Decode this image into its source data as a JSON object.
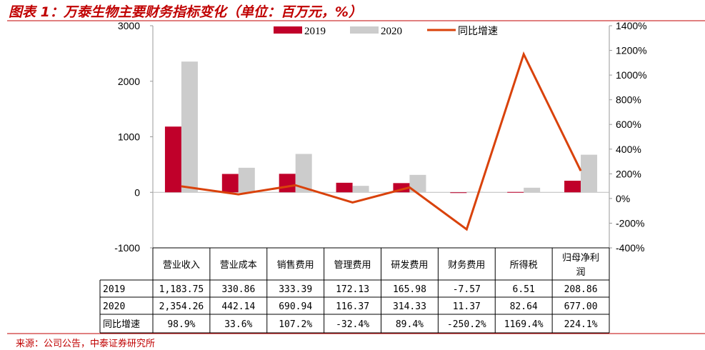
{
  "title": "图表 1：万泰生物主要财务指标变化（单位：百万元，%）",
  "source": "来源：公司公告，中泰证券研究所",
  "colors": {
    "s2019": "#c0002a",
    "s2020": "#cccccc",
    "growth": "#d9420b",
    "accent": "#c00000"
  },
  "chart_data": {
    "type": "bar",
    "categories": [
      "营业收入",
      "营业成本",
      "销售费用",
      "管理费用",
      "研发费用",
      "财务费用",
      "所得税",
      "归母净利润"
    ],
    "series": [
      {
        "name": "2019",
        "type": "bar",
        "axis": "left",
        "values": [
          1183.75,
          330.86,
          333.39,
          172.13,
          165.98,
          -7.57,
          6.51,
          208.86
        ],
        "labels": [
          "1,183.75",
          "330.86",
          "333.39",
          "172.13",
          "165.98",
          "-7.57",
          "6.51",
          "208.86"
        ]
      },
      {
        "name": "2020",
        "type": "bar",
        "axis": "left",
        "values": [
          2354.26,
          442.14,
          690.94,
          116.37,
          314.33,
          11.37,
          82.64,
          677.0
        ],
        "labels": [
          "2,354.26",
          "442.14",
          "690.94",
          "116.37",
          "314.33",
          "11.37",
          "82.64",
          "677.00"
        ]
      },
      {
        "name": "同比增速",
        "type": "line",
        "axis": "right",
        "values": [
          98.9,
          33.6,
          107.2,
          -32.4,
          89.4,
          -250.2,
          1169.4,
          224.1
        ],
        "labels": [
          "98.9%",
          "33.6%",
          "107.2%",
          "-32.4%",
          "89.4%",
          "-250.2%",
          "1169.4%",
          "224.1%"
        ]
      }
    ],
    "ylim": [
      -1000,
      3000
    ],
    "yticks": [
      "-1000",
      "0",
      "1000",
      "2000",
      "3000"
    ],
    "y2lim": [
      -400,
      1400
    ],
    "y2ticks": [
      "-400%",
      "-200%",
      "0%",
      "200%",
      "400%",
      "600%",
      "800%",
      "1000%",
      "1200%",
      "1400%"
    ],
    "legend": "top",
    "grid": false,
    "table": true
  }
}
